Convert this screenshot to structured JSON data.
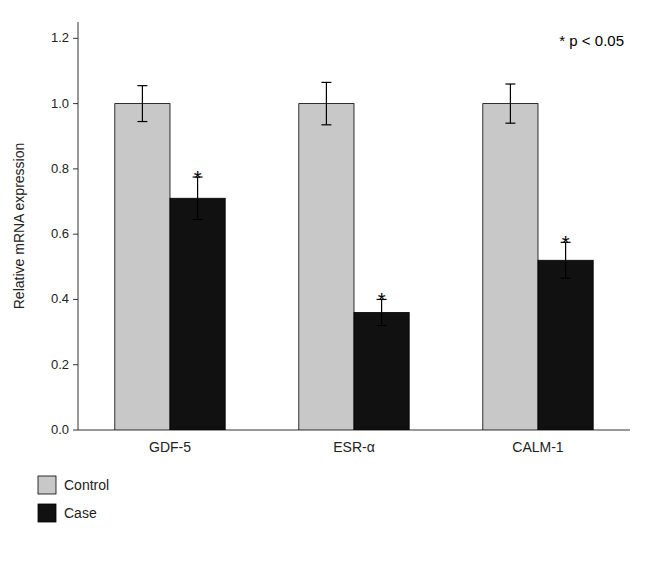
{
  "chart_data": {
    "type": "bar",
    "categories": [
      "GDF-5",
      "ESR-α",
      "CALM-1"
    ],
    "series": [
      {
        "name": "Control",
        "color": "#c8c8c8",
        "values": [
          1.0,
          1.0,
          1.0
        ],
        "errors": [
          0.055,
          0.065,
          0.06
        ]
      },
      {
        "name": "Case",
        "color": "#111111",
        "values": [
          0.71,
          0.36,
          0.52
        ],
        "errors": [
          0.065,
          0.04,
          0.055
        ],
        "significance": [
          "*",
          "*",
          "*"
        ]
      }
    ],
    "ylabel": "Relative mRNA expression",
    "ylim": [
      0,
      1.25
    ],
    "yticks": [
      {
        "value": 0,
        "label": "0.0"
      },
      0.2,
      0.4,
      0.6,
      0.8,
      {
        "value": 1.0,
        "label": "1.0"
      },
      1.2
    ],
    "annotations": [
      "* p < 0.05"
    ],
    "grid": false
  }
}
